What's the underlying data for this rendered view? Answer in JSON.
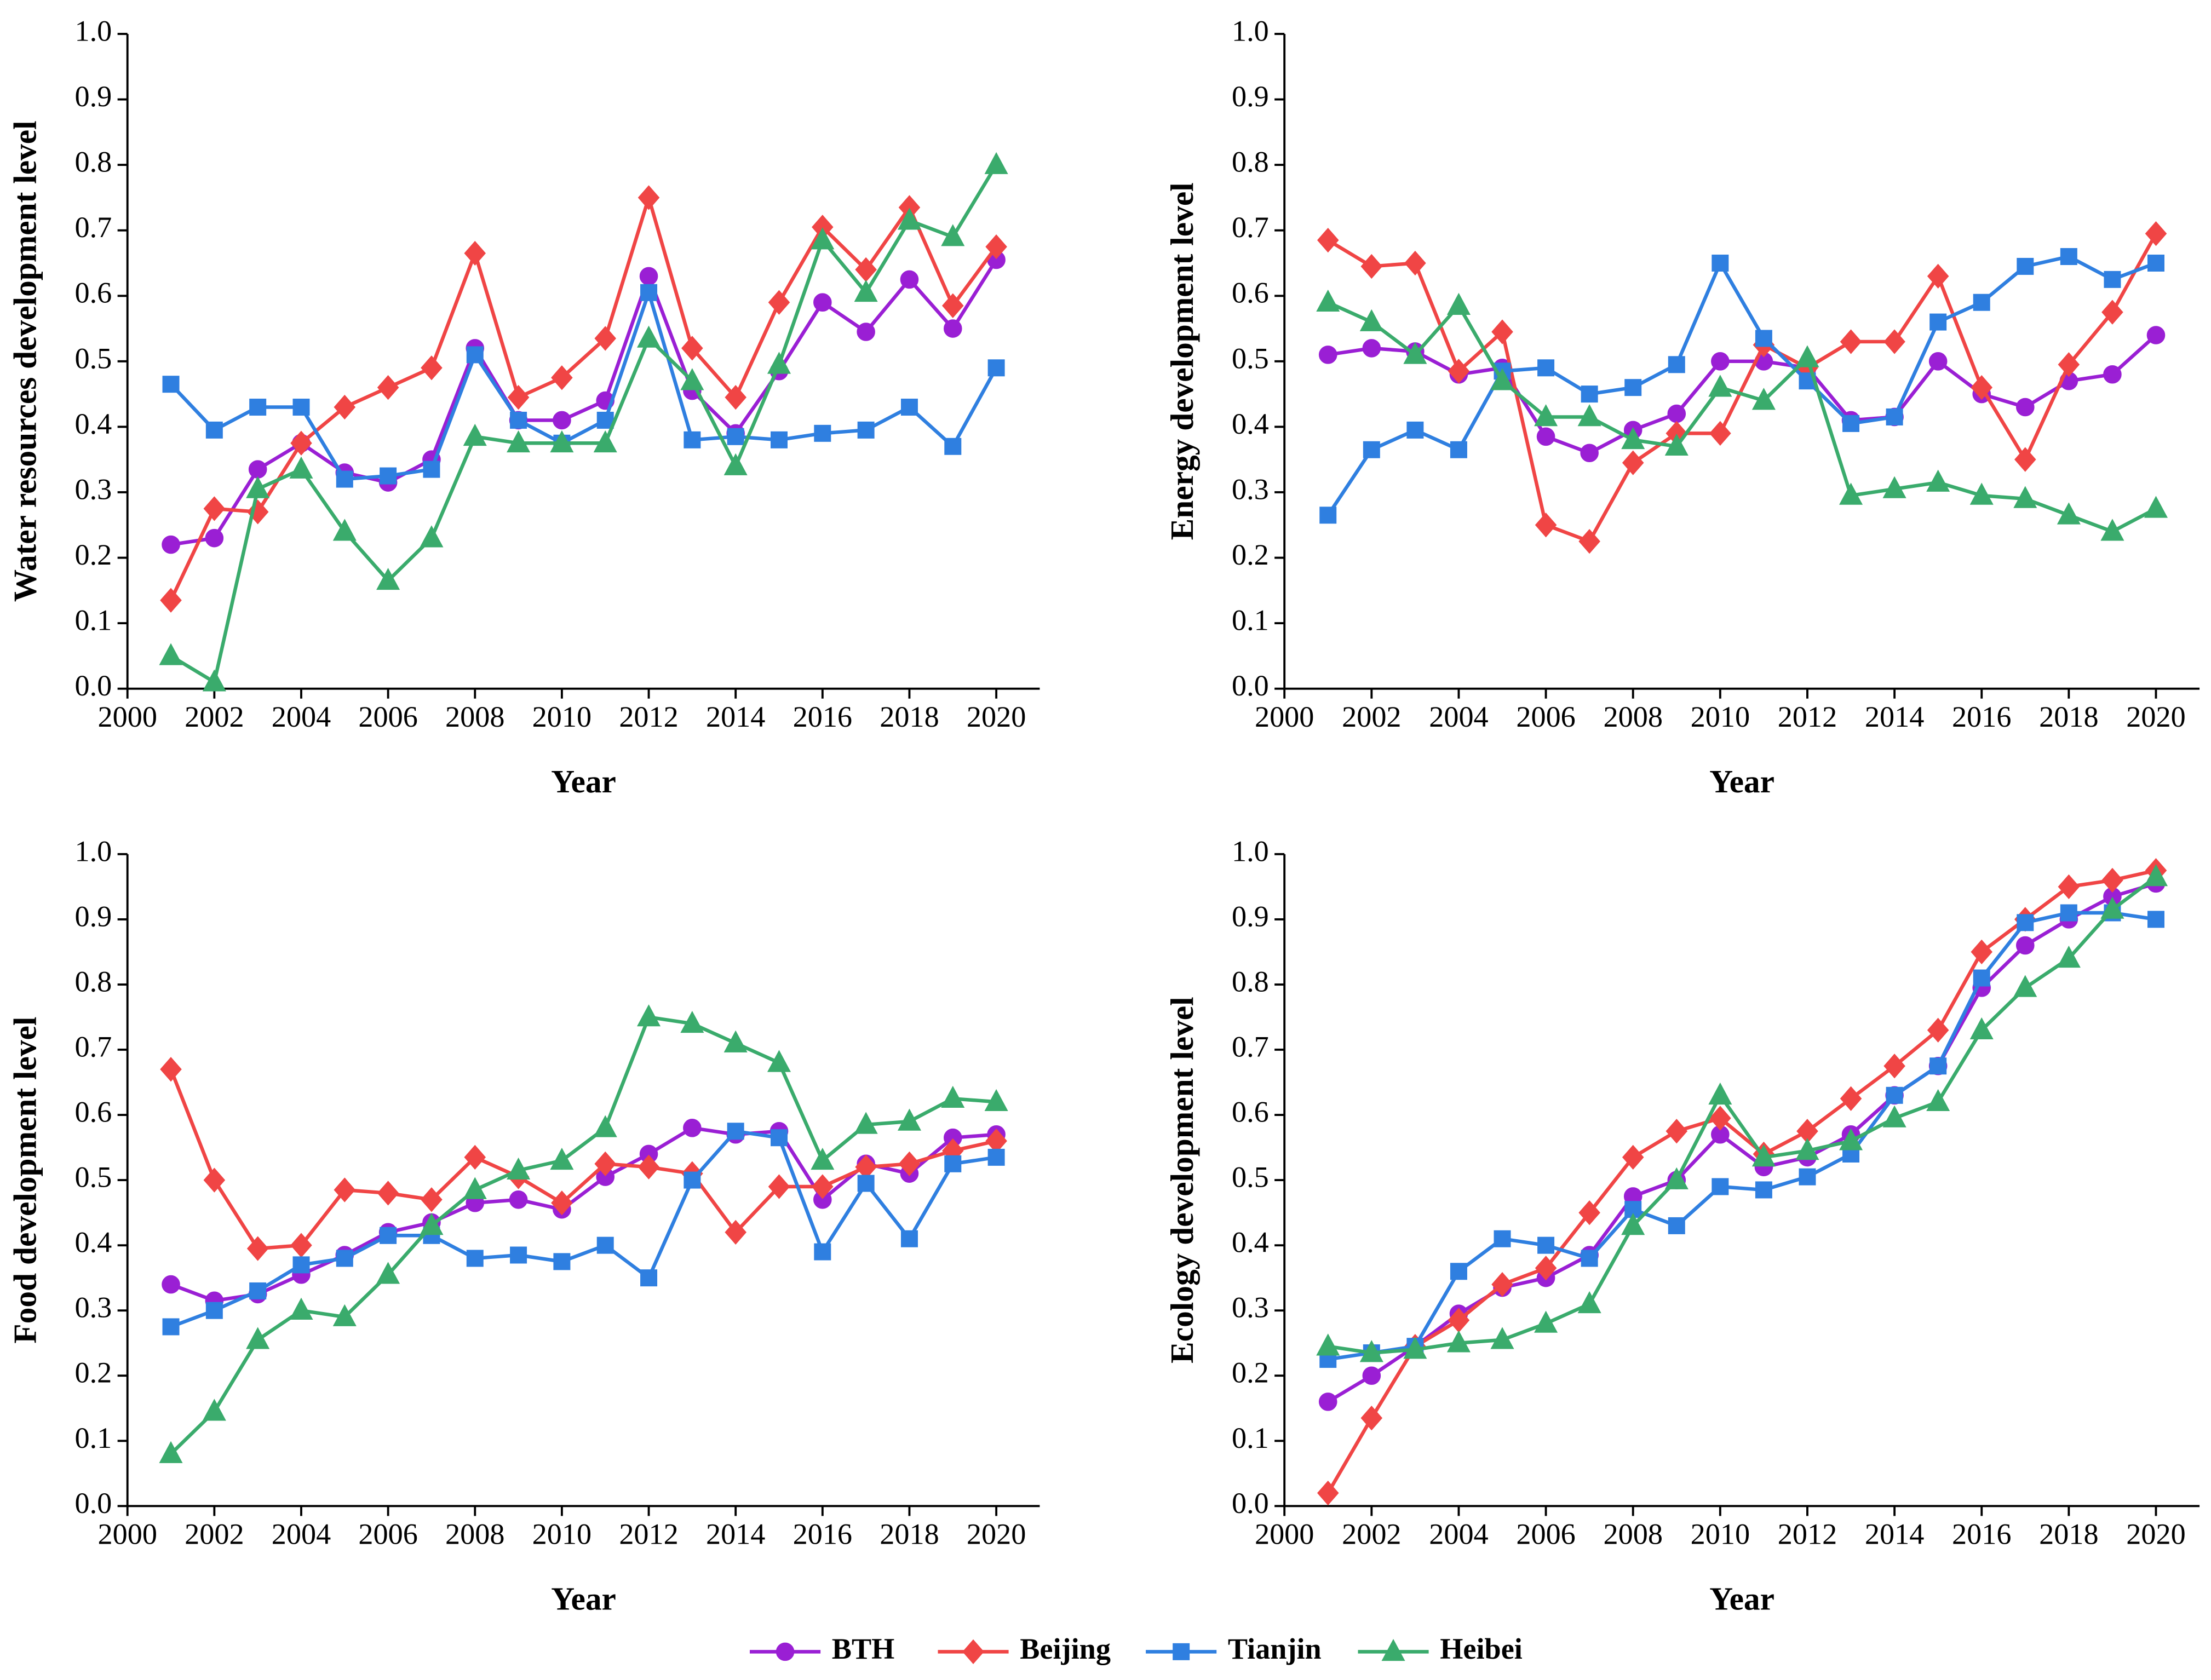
{
  "chart_data": [
    {
      "type": "line",
      "ylabel": "Water resources development level",
      "xlabel": "Year",
      "x": [
        2001,
        2002,
        2003,
        2004,
        2005,
        2006,
        2007,
        2008,
        2009,
        2010,
        2011,
        2012,
        2013,
        2014,
        2015,
        2016,
        2017,
        2018,
        2019,
        2020
      ],
      "xlim": [
        2000,
        2021
      ],
      "xticks": [
        2000,
        2002,
        2004,
        2006,
        2008,
        2010,
        2012,
        2014,
        2016,
        2018,
        2020
      ],
      "ylim": [
        0,
        1
      ],
      "yticks": [
        {
          "value": 0,
          "label": "0.0"
        },
        {
          "value": 0.1,
          "label": "0.1"
        },
        {
          "value": 0.2,
          "label": "0.2"
        },
        {
          "value": 0.3,
          "label": "0.3"
        },
        {
          "value": 0.4,
          "label": "0.4"
        },
        {
          "value": 0.5,
          "label": "0.5"
        },
        {
          "value": 0.6,
          "label": "0.6"
        },
        {
          "value": 0.7,
          "label": "0.7"
        },
        {
          "value": 0.8,
          "label": "0.8"
        },
        {
          "value": 0.9,
          "label": "0.9"
        },
        {
          "value": 1,
          "label": "1.0"
        }
      ],
      "series": [
        {
          "name": "BTH",
          "color": "#9a1fd4",
          "marker": "circle",
          "values": [
            0.22,
            0.23,
            0.335,
            0.375,
            0.33,
            0.315,
            0.35,
            0.52,
            0.41,
            0.41,
            0.44,
            0.63,
            0.455,
            0.39,
            0.485,
            0.59,
            0.545,
            0.625,
            0.55,
            0.655
          ]
        },
        {
          "name": "Beijing",
          "color": "#f04545",
          "marker": "diamond",
          "values": [
            0.135,
            0.275,
            0.27,
            0.375,
            0.43,
            0.46,
            0.49,
            0.665,
            0.445,
            0.475,
            0.535,
            0.75,
            0.52,
            0.445,
            0.59,
            0.705,
            0.64,
            0.735,
            0.585,
            0.675
          ]
        },
        {
          "name": "Tianjin",
          "color": "#2f7fe0",
          "marker": "square",
          "values": [
            0.465,
            0.395,
            0.43,
            0.43,
            0.32,
            0.325,
            0.335,
            0.51,
            0.41,
            0.375,
            0.41,
            0.605,
            0.38,
            0.385,
            0.38,
            0.39,
            0.395,
            0.43,
            0.37,
            0.49
          ]
        },
        {
          "name": "Heibei",
          "color": "#3aab6c",
          "marker": "triangle",
          "values": [
            0.05,
            0.01,
            0.305,
            0.335,
            0.24,
            0.165,
            0.23,
            0.385,
            0.375,
            0.375,
            0.375,
            0.535,
            0.47,
            0.34,
            0.495,
            0.685,
            0.605,
            0.715,
            0.69,
            0.8
          ]
        }
      ]
    },
    {
      "type": "line",
      "ylabel": "Energy development level",
      "xlabel": "Year",
      "x": [
        2001,
        2002,
        2003,
        2004,
        2005,
        2006,
        2007,
        2008,
        2009,
        2010,
        2011,
        2012,
        2013,
        2014,
        2015,
        2016,
        2017,
        2018,
        2019,
        2020
      ],
      "xlim": [
        2000,
        2021
      ],
      "xticks": [
        2000,
        2002,
        2004,
        2006,
        2008,
        2010,
        2012,
        2014,
        2016,
        2018,
        2020
      ],
      "ylim": [
        0,
        1
      ],
      "yticks": [
        {
          "value": 0,
          "label": "0.0"
        },
        {
          "value": 0.1,
          "label": "0.1"
        },
        {
          "value": 0.2,
          "label": "0.2"
        },
        {
          "value": 0.3,
          "label": "0.3"
        },
        {
          "value": 0.4,
          "label": "0.4"
        },
        {
          "value": 0.5,
          "label": "0.5"
        },
        {
          "value": 0.6,
          "label": "0.6"
        },
        {
          "value": 0.7,
          "label": "0.7"
        },
        {
          "value": 0.8,
          "label": "0.8"
        },
        {
          "value": 0.9,
          "label": "0.9"
        },
        {
          "value": 1,
          "label": "1.0"
        }
      ],
      "series": [
        {
          "name": "BTH",
          "color": "#9a1fd4",
          "marker": "circle",
          "values": [
            0.51,
            0.52,
            0.515,
            0.48,
            0.49,
            0.385,
            0.36,
            0.395,
            0.42,
            0.5,
            0.5,
            0.49,
            0.41,
            0.415,
            0.5,
            0.45,
            0.43,
            0.47,
            0.48,
            0.54
          ]
        },
        {
          "name": "Beijing",
          "color": "#f04545",
          "marker": "diamond",
          "values": [
            0.685,
            0.645,
            0.65,
            0.485,
            0.545,
            0.25,
            0.225,
            0.345,
            0.39,
            0.39,
            0.525,
            0.49,
            0.53,
            0.53,
            0.63,
            0.46,
            0.35,
            0.495,
            0.575,
            0.695
          ]
        },
        {
          "name": "Tianjin",
          "color": "#2f7fe0",
          "marker": "square",
          "values": [
            0.265,
            0.365,
            0.395,
            0.365,
            0.485,
            0.49,
            0.45,
            0.46,
            0.495,
            0.65,
            0.535,
            0.47,
            0.405,
            0.415,
            0.56,
            0.59,
            0.645,
            0.66,
            0.625,
            0.65
          ]
        },
        {
          "name": "Heibei",
          "color": "#3aab6c",
          "marker": "triangle",
          "values": [
            0.59,
            0.56,
            0.51,
            0.585,
            0.47,
            0.415,
            0.415,
            0.38,
            0.37,
            0.46,
            0.44,
            0.505,
            0.295,
            0.305,
            0.315,
            0.295,
            0.29,
            0.265,
            0.24,
            0.275
          ]
        }
      ]
    },
    {
      "type": "line",
      "ylabel": "Food development level",
      "xlabel": "Year",
      "x": [
        2001,
        2002,
        2003,
        2004,
        2005,
        2006,
        2007,
        2008,
        2009,
        2010,
        2011,
        2012,
        2013,
        2014,
        2015,
        2016,
        2017,
        2018,
        2019,
        2020
      ],
      "xlim": [
        2000,
        2021
      ],
      "xticks": [
        2000,
        2002,
        2004,
        2006,
        2008,
        2010,
        2012,
        2014,
        2016,
        2018,
        2020
      ],
      "ylim": [
        0,
        1
      ],
      "yticks": [
        {
          "value": 0,
          "label": "0.0"
        },
        {
          "value": 0.1,
          "label": "0.1"
        },
        {
          "value": 0.2,
          "label": "0.2"
        },
        {
          "value": 0.3,
          "label": "0.3"
        },
        {
          "value": 0.4,
          "label": "0.4"
        },
        {
          "value": 0.5,
          "label": "0.5"
        },
        {
          "value": 0.6,
          "label": "0.6"
        },
        {
          "value": 0.7,
          "label": "0.7"
        },
        {
          "value": 0.8,
          "label": "0.8"
        },
        {
          "value": 0.9,
          "label": "0.9"
        },
        {
          "value": 1,
          "label": "1.0"
        }
      ],
      "series": [
        {
          "name": "BTH",
          "color": "#9a1fd4",
          "marker": "circle",
          "values": [
            0.34,
            0.315,
            0.325,
            0.355,
            0.385,
            0.42,
            0.435,
            0.465,
            0.47,
            0.455,
            0.505,
            0.54,
            0.58,
            0.57,
            0.575,
            0.47,
            0.525,
            0.51,
            0.565,
            0.57
          ]
        },
        {
          "name": "Beijing",
          "color": "#f04545",
          "marker": "diamond",
          "values": [
            0.67,
            0.5,
            0.395,
            0.4,
            0.485,
            0.48,
            0.47,
            0.535,
            0.505,
            0.465,
            0.525,
            0.52,
            0.51,
            0.42,
            0.49,
            0.49,
            0.52,
            0.525,
            0.545,
            0.56
          ]
        },
        {
          "name": "Tianjin",
          "color": "#2f7fe0",
          "marker": "square",
          "values": [
            0.275,
            0.3,
            0.33,
            0.37,
            0.38,
            0.415,
            0.415,
            0.38,
            0.385,
            0.375,
            0.4,
            0.35,
            0.5,
            0.575,
            0.565,
            0.39,
            0.495,
            0.41,
            0.525,
            0.535
          ]
        },
        {
          "name": "Heibei",
          "color": "#3aab6c",
          "marker": "triangle",
          "values": [
            0.08,
            0.145,
            0.255,
            0.3,
            0.29,
            0.355,
            0.43,
            0.485,
            0.515,
            0.53,
            0.58,
            0.75,
            0.74,
            0.71,
            0.68,
            0.53,
            0.585,
            0.59,
            0.625,
            0.62
          ]
        }
      ]
    },
    {
      "type": "line",
      "ylabel": "Ecology development level",
      "xlabel": "Year",
      "x": [
        2001,
        2002,
        2003,
        2004,
        2005,
        2006,
        2007,
        2008,
        2009,
        2010,
        2011,
        2012,
        2013,
        2014,
        2015,
        2016,
        2017,
        2018,
        2019,
        2020
      ],
      "xlim": [
        2000,
        2021
      ],
      "xticks": [
        2000,
        2002,
        2004,
        2006,
        2008,
        2010,
        2012,
        2014,
        2016,
        2018,
        2020
      ],
      "ylim": [
        0,
        1
      ],
      "yticks": [
        {
          "value": 0,
          "label": "0.0"
        },
        {
          "value": 0.1,
          "label": "0.1"
        },
        {
          "value": 0.2,
          "label": "0.2"
        },
        {
          "value": 0.3,
          "label": "0.3"
        },
        {
          "value": 0.4,
          "label": "0.4"
        },
        {
          "value": 0.5,
          "label": "0.5"
        },
        {
          "value": 0.6,
          "label": "0.6"
        },
        {
          "value": 0.7,
          "label": "0.7"
        },
        {
          "value": 0.8,
          "label": "0.8"
        },
        {
          "value": 0.9,
          "label": "0.9"
        },
        {
          "value": 1,
          "label": "1.0"
        }
      ],
      "series": [
        {
          "name": "BTH",
          "color": "#9a1fd4",
          "marker": "circle",
          "values": [
            0.16,
            0.2,
            0.245,
            0.295,
            0.335,
            0.35,
            0.385,
            0.475,
            0.5,
            0.57,
            0.52,
            0.535,
            0.57,
            0.63,
            0.675,
            0.795,
            0.86,
            0.9,
            0.935,
            0.955
          ]
        },
        {
          "name": "Beijing",
          "color": "#f04545",
          "marker": "diamond",
          "values": [
            0.02,
            0.135,
            0.245,
            0.285,
            0.34,
            0.365,
            0.45,
            0.535,
            0.575,
            0.595,
            0.54,
            0.575,
            0.625,
            0.675,
            0.73,
            0.85,
            0.9,
            0.95,
            0.96,
            0.975
          ]
        },
        {
          "name": "Tianjin",
          "color": "#2f7fe0",
          "marker": "square",
          "values": [
            0.225,
            0.235,
            0.245,
            0.36,
            0.41,
            0.4,
            0.38,
            0.455,
            0.43,
            0.49,
            0.485,
            0.505,
            0.54,
            0.63,
            0.675,
            0.81,
            0.895,
            0.91,
            0.91,
            0.9
          ]
        },
        {
          "name": "Heibei",
          "color": "#3aab6c",
          "marker": "triangle",
          "values": [
            0.245,
            0.235,
            0.24,
            0.25,
            0.255,
            0.28,
            0.31,
            0.43,
            0.5,
            0.63,
            0.535,
            0.545,
            0.56,
            0.595,
            0.62,
            0.73,
            0.795,
            0.84,
            0.915,
            0.965
          ]
        }
      ]
    }
  ]
}
